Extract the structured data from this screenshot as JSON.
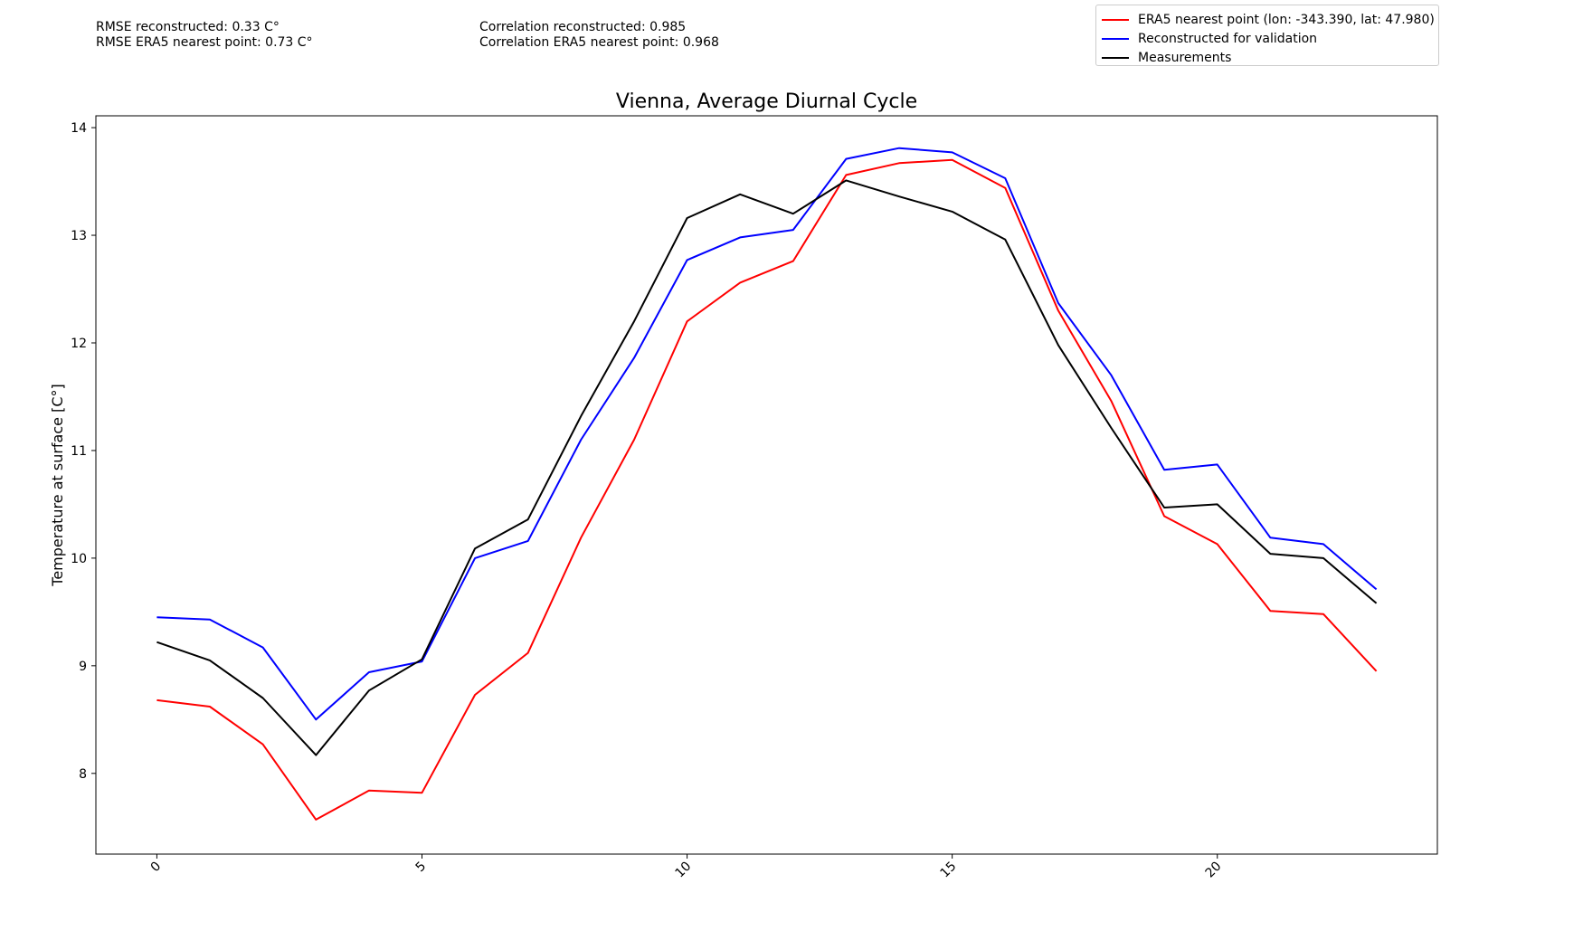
{
  "stats": {
    "rmse_reconstructed": "RMSE reconstructed: 0.33 C°",
    "rmse_era5": "RMSE ERA5 nearest point: 0.73 C°",
    "corr_reconstructed": "Correlation reconstructed: 0.985",
    "corr_era5": "Correlation ERA5 nearest point: 0.968"
  },
  "chart_data": {
    "type": "line",
    "title": "Vienna, Average Diurnal Cycle",
    "xlabel": "",
    "ylabel": "Temperature at surface [C°]",
    "x": [
      0,
      1,
      2,
      3,
      4,
      5,
      6,
      7,
      8,
      9,
      10,
      11,
      12,
      13,
      14,
      15,
      16,
      17,
      18,
      19,
      20,
      21,
      22,
      23
    ],
    "xticks": [
      "0",
      "5",
      "10",
      "15",
      "20"
    ],
    "xtick_values": [
      0,
      5,
      10,
      15,
      20
    ],
    "yticks": [
      "8",
      "9",
      "10",
      "11",
      "12",
      "13",
      "14"
    ],
    "ytick_values": [
      8,
      9,
      10,
      11,
      12,
      13,
      14
    ],
    "xlim": [
      -1.15,
      24.15
    ],
    "ylim": [
      7.25,
      14.11
    ],
    "grid": false,
    "legend_position": "top-right",
    "series": [
      {
        "name": "ERA5 nearest point (lon: -343.390, lat: 47.980)",
        "color": "#ff0000",
        "values": [
          8.68,
          8.62,
          8.27,
          7.57,
          7.84,
          7.82,
          8.73,
          9.12,
          10.19,
          11.1,
          12.2,
          12.56,
          12.76,
          13.56,
          13.67,
          13.7,
          13.44,
          12.3,
          11.46,
          10.39,
          10.13,
          9.51,
          9.48,
          8.95
        ]
      },
      {
        "name": "Reconstructed for validation",
        "color": "#0000ff",
        "values": [
          9.45,
          9.43,
          9.17,
          8.5,
          8.94,
          9.04,
          10.0,
          10.16,
          11.1,
          11.86,
          12.77,
          12.98,
          13.05,
          13.71,
          13.81,
          13.77,
          13.53,
          12.37,
          11.7,
          10.82,
          10.87,
          10.19,
          10.13,
          9.71
        ]
      },
      {
        "name": "Measurements",
        "color": "#000000",
        "values": [
          9.22,
          9.05,
          8.7,
          8.17,
          8.77,
          9.06,
          10.09,
          10.36,
          11.32,
          12.2,
          13.16,
          13.38,
          13.2,
          13.51,
          13.36,
          13.22,
          12.96,
          11.98,
          11.21,
          10.47,
          10.5,
          10.04,
          10.0,
          9.58
        ]
      }
    ]
  }
}
